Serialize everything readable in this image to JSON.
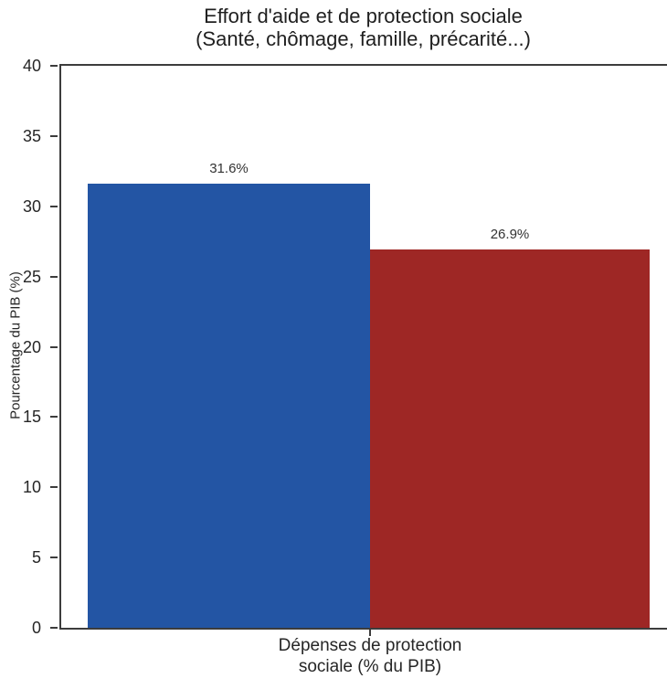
{
  "chart_data": {
    "type": "bar",
    "title": "Effort d'aide et de protection sociale",
    "subtitle": "(Santé, chômage, famille, précarité...)",
    "categories": [
      "Dépenses de protection sociale (% du PIB)"
    ],
    "series": [
      {
        "color": "#2355A4",
        "value": 31.6,
        "label": "31.6%"
      },
      {
        "color": "#9E2725",
        "value": 26.9,
        "label": "26.9%"
      }
    ],
    "xlabel": "",
    "ylabel": "Pourcentage du PIB (%)",
    "ylim": [
      0,
      40
    ],
    "yticks": [
      0,
      5,
      10,
      15,
      20,
      25,
      30,
      35,
      40
    ],
    "grid": false,
    "legend": "none",
    "axis_color": "#3c3c3c",
    "text_color": "#262626"
  }
}
